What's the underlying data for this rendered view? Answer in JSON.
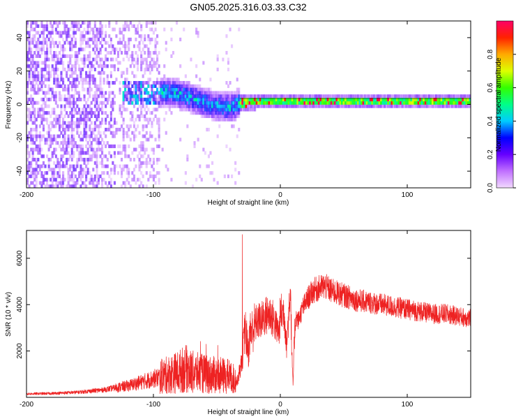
{
  "title": "GN05.2025.316.03.33.C32",
  "colors": {
    "snr_line": "#ee2222",
    "axis": "#000000",
    "cbar_stops": [
      "#f2d9ff",
      "#c070ff",
      "#6600ff",
      "#0000ff",
      "#00ccff",
      "#00ff88",
      "#33ff00",
      "#ddff00",
      "#ffaa00",
      "#ff2200",
      "#ff0066"
    ]
  },
  "chart_data": [
    {
      "type": "heatmap",
      "name": "spectrogram",
      "title": "GN05.2025.316.03.33.C32",
      "xlabel": "Height of straight line (km)",
      "ylabel": "Frequency (Hz)",
      "xlim": [
        -200,
        150
      ],
      "ylim": [
        -50,
        50
      ],
      "xticks": [
        -200,
        -100,
        0,
        100
      ],
      "yticks": [
        -40,
        -20,
        0,
        20,
        40
      ],
      "colorbar": {
        "label": "Normalized spectral amplitude",
        "range": [
          0.0,
          1.0
        ],
        "ticks": [
          0.0,
          0.2,
          0.4,
          0.6,
          0.8
        ]
      },
      "ridge": [
        [
          -125,
          5
        ],
        [
          -100,
          7
        ],
        [
          -85,
          6
        ],
        [
          -75,
          4
        ],
        [
          -60,
          0
        ],
        [
          -50,
          -2
        ],
        [
          -40,
          -3
        ],
        [
          -33,
          0
        ],
        [
          -20,
          1
        ],
        [
          0,
          1
        ],
        [
          50,
          1
        ],
        [
          100,
          1
        ],
        [
          150,
          1
        ]
      ]
    },
    {
      "type": "line",
      "name": "snr",
      "xlabel": "Height of straight line (km)",
      "ylabel": "SNR (10 * v/v)",
      "xlim": [
        -200,
        150
      ],
      "ylim": [
        0,
        7200
      ],
      "xticks": [
        -200,
        -100,
        0,
        100
      ],
      "yticks": [
        2000,
        4000,
        6000
      ],
      "series": [
        {
          "name": "SNR",
          "x": [
            -200,
            -180,
            -160,
            -140,
            -120,
            -100,
            -90,
            -80,
            -75,
            -70,
            -60,
            -50,
            -40,
            -34,
            -30,
            -28,
            -27,
            -25,
            -24,
            -22,
            -20,
            -18,
            -15,
            -12,
            -8,
            -5,
            -3,
            -1,
            0,
            3,
            5,
            7,
            8,
            9,
            10,
            11,
            12,
            14,
            18,
            22,
            26,
            30,
            35,
            40,
            50,
            60,
            70,
            80,
            90,
            100,
            110,
            120,
            130,
            140,
            150
          ],
          "values": [
            150,
            170,
            220,
            320,
            500,
            800,
            950,
            1100,
            1250,
            1100,
            1000,
            950,
            900,
            700,
            1600,
            3000,
            2700,
            1900,
            2800,
            2900,
            3100,
            3300,
            3300,
            3500,
            3600,
            3300,
            3000,
            2800,
            3600,
            3700,
            2200,
            4000,
            4900,
            2000,
            500,
            2500,
            3500,
            3300,
            3900,
            4300,
            4600,
            4700,
            4800,
            4600,
            4400,
            4200,
            4100,
            4000,
            3900,
            3800,
            3700,
            3600,
            3600,
            3500,
            3400
          ]
        }
      ]
    }
  ]
}
